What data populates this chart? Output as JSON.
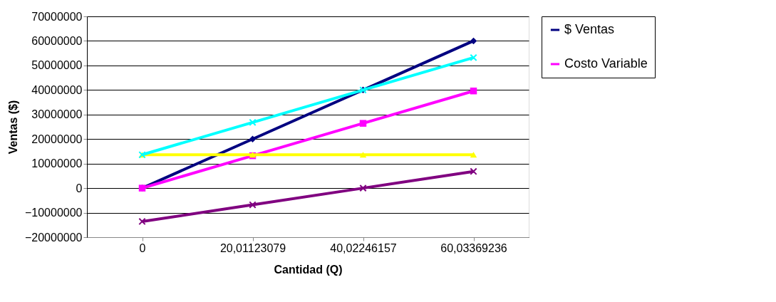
{
  "chart_data": {
    "type": "line",
    "xlabel": "Cantidad (Q)",
    "ylabel": "Ventas ($)",
    "categories": [
      "0",
      "20,01123079",
      "40,02246157",
      "60,03369236"
    ],
    "series": [
      {
        "name": "$ Ventas",
        "color": "#000080",
        "marker": "diamond",
        "values": [
          0,
          20000000,
          40000000,
          60000000
        ]
      },
      {
        "name": "Costo Variable",
        "color": "#ff00ff",
        "marker": "square",
        "values": [
          0,
          13200000,
          26400000,
          39600000
        ]
      },
      {
        "color": "#ffff00",
        "marker": "triangle",
        "values": [
          13600000,
          13600000,
          13600000,
          13600000
        ]
      },
      {
        "color": "#00ffff",
        "marker": "cross",
        "values": [
          13600000,
          26800000,
          40000000,
          53200000
        ]
      },
      {
        "color": "#800080",
        "marker": "cross",
        "values": [
          -13600000,
          -6800000,
          0,
          6800000
        ]
      }
    ],
    "ylim": [
      -20000000,
      70000000
    ],
    "yticks": [
      -20000000,
      -10000000,
      0,
      10000000,
      20000000,
      30000000,
      40000000,
      50000000,
      60000000,
      70000000
    ],
    "grid": "y",
    "legend": "right",
    "line_style": "solid"
  }
}
